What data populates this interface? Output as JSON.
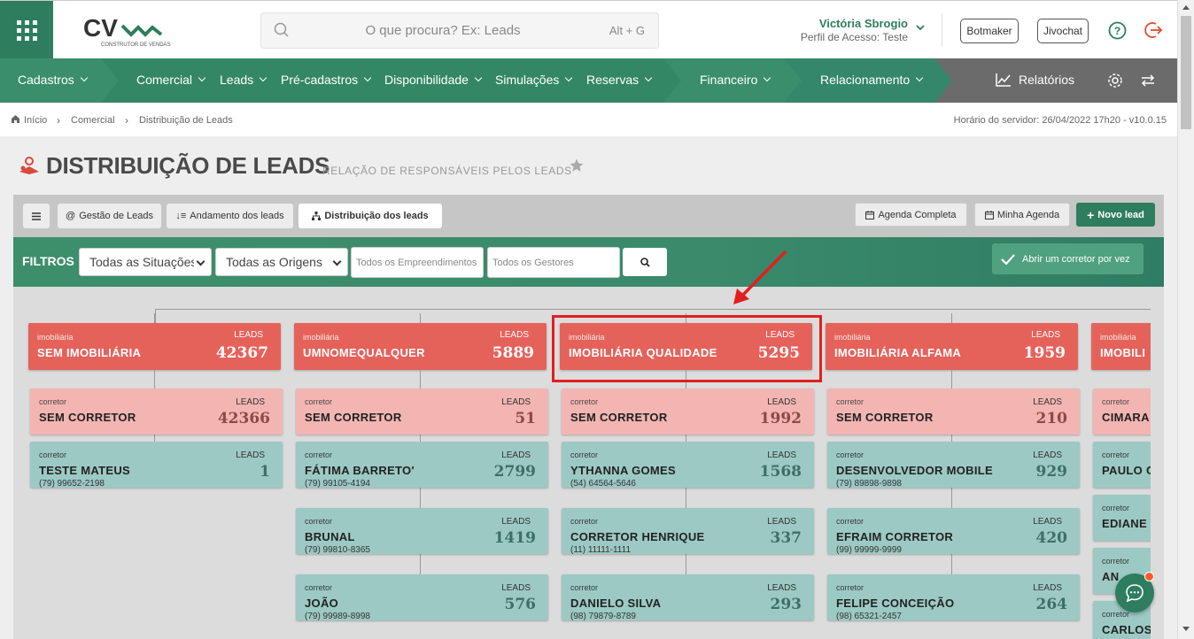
{
  "header": {
    "logo_text": "CV",
    "logo_sub": "CONSTRUTOR DE VENDAS",
    "search_placeholder": "O que procura? Ex: Leads",
    "search_shortcut": "Alt + G",
    "user_name": "Victória Sbrogio",
    "user_profile": "Perfil de Acesso: Teste",
    "btn_botmaker": "Botmaker",
    "btn_jivochat": "Jivochat"
  },
  "nav": {
    "items": [
      {
        "label": "Cadastros"
      },
      {
        "label": "Comercial"
      },
      {
        "label": "Leads"
      },
      {
        "label": "Pré-cadastros"
      },
      {
        "label": "Disponibilidade"
      },
      {
        "label": "Simulações"
      },
      {
        "label": "Reservas"
      },
      {
        "label": "Financeiro"
      },
      {
        "label": "Relacionamento"
      }
    ],
    "reports": "Relatórios"
  },
  "breadcrumb": {
    "home": "Início",
    "level1": "Comercial",
    "level2": "Distribuição de Leads",
    "server_time": "Horário do servidor: 26/04/2022 17h20 - v10.0.15"
  },
  "page": {
    "title": "DISTRIBUIÇÃO DE LEADS",
    "subtitle": "RELAÇÃO DE RESPONSÁVEIS PELOS LEADS"
  },
  "tabs": {
    "gestao": "Gestão de Leads",
    "andamento": "Andamento dos leads",
    "distribuicao": "Distribuição dos leads",
    "agenda_completa": "Agenda Completa",
    "minha_agenda": "Minha Agenda",
    "novo_lead": "Novo lead"
  },
  "filters": {
    "label": "FILTROS",
    "situacao": "Todas as Situações",
    "origem": "Todas as Origens",
    "empreendimentos_placeholder": "Todos os Empreendimentos",
    "gestores_placeholder": "Todos os Gestores",
    "toggle_label": "Abrir um corretor por vez"
  },
  "tree": {
    "kind_imob": "imobiliária",
    "kind_agent": "corretor",
    "leads_label": "LEADS",
    "columns": [
      {
        "name": "SEM IMOBILIÁRIA",
        "leads": "42367",
        "agents": [
          {
            "name": "SEM CORRETOR",
            "leads": "42366",
            "phone": "",
            "none": true
          },
          {
            "name": "TESTE MATEUS",
            "leads": "1",
            "phone": "(79) 99652-2198"
          }
        ]
      },
      {
        "name": "UMNOMEQUALQUER",
        "leads": "5889",
        "agents": [
          {
            "name": "SEM CORRETOR",
            "leads": "51",
            "phone": "",
            "none": true
          },
          {
            "name": "FÁTIMA BARRETO'",
            "leads": "2799",
            "phone": "(79) 99105-4194"
          },
          {
            "name": "BRUNAL",
            "leads": "1419",
            "phone": "(79) 99810-8365"
          },
          {
            "name": "JOÃO",
            "leads": "576",
            "phone": "(79) 99989-8998"
          }
        ]
      },
      {
        "name": "IMOBILIÁRIA QUALIDADE",
        "leads": "5295",
        "agents": [
          {
            "name": "SEM CORRETOR",
            "leads": "1992",
            "phone": "",
            "none": true
          },
          {
            "name": "YTHANNA GOMES",
            "leads": "1568",
            "phone": "(54) 64564-5646"
          },
          {
            "name": "CORRETOR HENRIQUE",
            "leads": "337",
            "phone": "(11) 11111-1111"
          },
          {
            "name": "DANIELO SILVA",
            "leads": "293",
            "phone": "(98) 79879-8789"
          }
        ]
      },
      {
        "name": "IMOBILIÁRIA ALFAMA",
        "leads": "1959",
        "agents": [
          {
            "name": "SEM CORRETOR",
            "leads": "210",
            "phone": "",
            "none": true
          },
          {
            "name": "DESENVOLVEDOR MOBILE",
            "leads": "929",
            "phone": "(79) 89898-9898"
          },
          {
            "name": "EFRAIM CORRETOR",
            "leads": "420",
            "phone": "(99) 99999-9999"
          },
          {
            "name": "FELIPE CONCEIÇÃO",
            "leads": "264",
            "phone": "(98) 65321-2457"
          }
        ]
      },
      {
        "name": "IMOBILI",
        "leads": "",
        "agents": [
          {
            "name": "CIMARA",
            "leads": "",
            "phone": "",
            "none": true
          },
          {
            "name": "PAULO C",
            "leads": "",
            "phone": ""
          },
          {
            "name": "EDIANE",
            "leads": "",
            "phone": ""
          },
          {
            "name": "AN",
            "leads": "",
            "phone": ""
          },
          {
            "name": "CARLOS",
            "leads": "",
            "phone": ""
          }
        ]
      }
    ]
  },
  "colors": {
    "brand_green": "#2e7d5e",
    "nav_green": "#3a8e6b",
    "imob_red": "#e5625b",
    "none_pink": "#f2b5b2",
    "agent_teal": "#9cc9c4",
    "highlight_red": "#e31e1e"
  }
}
